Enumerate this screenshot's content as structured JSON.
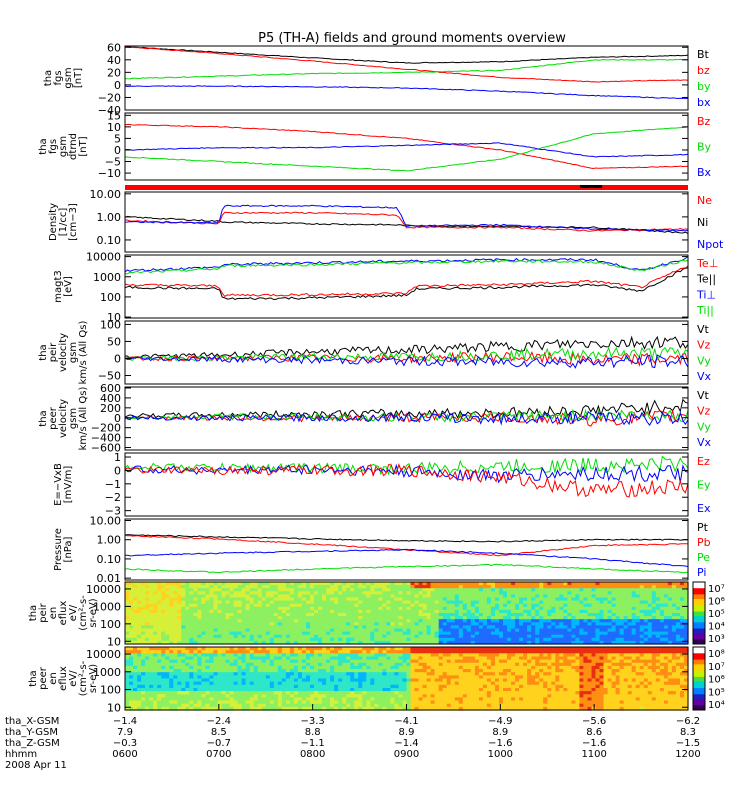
{
  "title": "P5 (TH-A) fields and ground moments overview",
  "colors": {
    "black": "#000000",
    "red": "#ff0000",
    "green": "#00dd00",
    "blue": "#0000ff",
    "flag": "#ff0000"
  },
  "chart_data": [
    {
      "id": "fgs-gsm",
      "type": "line",
      "ylabel": [
        "tha",
        "fgs",
        "gsm",
        "[nT]"
      ],
      "yticks": [
        "60",
        "40",
        "20",
        "0",
        "−20",
        "−40"
      ],
      "tick_values": [
        60,
        40,
        20,
        0,
        -20,
        -40
      ],
      "ylim": [
        -40,
        62
      ],
      "legend": [
        {
          "name": "Bt",
          "color": "black"
        },
        {
          "name": "bz",
          "color": "red"
        },
        {
          "name": "by",
          "color": "green"
        },
        {
          "name": "bx",
          "color": "blue"
        }
      ],
      "x": [
        0,
        1,
        2,
        3,
        4,
        5,
        6
      ],
      "series": [
        {
          "color": "black",
          "values": [
            61,
            52,
            43,
            35,
            37,
            44,
            47
          ]
        },
        {
          "color": "red",
          "values": [
            61,
            50,
            38,
            25,
            12,
            5,
            8
          ]
        },
        {
          "color": "green",
          "values": [
            10,
            14,
            18,
            20,
            23,
            40,
            40
          ]
        },
        {
          "color": "blue",
          "values": [
            -2,
            -2,
            -3,
            -5,
            -10,
            -17,
            -22
          ]
        }
      ]
    },
    {
      "id": "fgs-gsm-detrended",
      "type": "line",
      "ylabel": [
        "tha",
        "fgs",
        "gsm",
        "dtrnd",
        "[nT]"
      ],
      "yticks": [
        "15",
        "10",
        "5",
        "0",
        "−5",
        "−10"
      ],
      "tick_values": [
        15,
        10,
        5,
        0,
        -5,
        -10
      ],
      "ylim": [
        -13,
        16
      ],
      "legend": [
        {
          "name": "Bz",
          "color": "red"
        },
        {
          "name": "By",
          "color": "green"
        },
        {
          "name": "Bx",
          "color": "blue"
        }
      ],
      "x": [
        0,
        1,
        2,
        3,
        4,
        5,
        6
      ],
      "series": [
        {
          "color": "red",
          "values": [
            11,
            10,
            8,
            5,
            0,
            -8,
            -7
          ]
        },
        {
          "color": "green",
          "values": [
            -3,
            -5,
            -7,
            -9,
            -4,
            7,
            10
          ]
        },
        {
          "color": "blue",
          "values": [
            0,
            1,
            1,
            2,
            3,
            -3,
            -2
          ]
        }
      ]
    },
    {
      "id": "density",
      "type": "line",
      "log": true,
      "ylabel": [
        "Density",
        "[1/cc]",
        "[cm−3]"
      ],
      "yticks": [
        "10.00",
        "1.00",
        "0.10"
      ],
      "tick_values": [
        10,
        1,
        0.1
      ],
      "ylim": [
        0.03,
        12
      ],
      "legend": [
        {
          "name": "Ne",
          "color": "red"
        },
        {
          "name": "Ni",
          "color": "black"
        },
        {
          "name": "Npot",
          "color": "blue"
        }
      ],
      "x": [
        0,
        1,
        1.05,
        2,
        2.9,
        3,
        4,
        5,
        6
      ],
      "series": [
        {
          "color": "black",
          "values": [
            1.0,
            0.65,
            0.6,
            0.5,
            0.45,
            0.42,
            0.38,
            0.35,
            0.2
          ]
        },
        {
          "color": "red",
          "values": [
            0.7,
            0.5,
            1.5,
            1.5,
            1.2,
            0.35,
            0.35,
            0.25,
            0.3
          ]
        },
        {
          "color": "blue",
          "values": [
            0.6,
            0.55,
            3.0,
            3.0,
            2.5,
            0.4,
            0.45,
            0.3,
            0.25
          ]
        }
      ]
    },
    {
      "id": "temperature",
      "type": "line",
      "log": true,
      "ylabel": [
        "magt3",
        "[eV]"
      ],
      "yticks": [
        "10000",
        "1000",
        "100",
        "10"
      ],
      "tick_values": [
        10000,
        1000,
        100,
        10
      ],
      "ylim": [
        9,
        12000
      ],
      "legend": [
        {
          "name": "Te⊥",
          "color": "red"
        },
        {
          "name": "Te||",
          "color": "black"
        },
        {
          "name": "Ti⊥",
          "color": "blue"
        },
        {
          "name": "Ti||",
          "color": "green"
        }
      ],
      "x": [
        0,
        1,
        1.05,
        2,
        3,
        3.1,
        4,
        5,
        5.5,
        6
      ],
      "series": [
        {
          "color": "black",
          "values": [
            300,
            250,
            80,
            90,
            120,
            250,
            300,
            400,
            200,
            3000
          ]
        },
        {
          "color": "red",
          "values": [
            400,
            350,
            120,
            130,
            150,
            350,
            400,
            600,
            300,
            3500
          ]
        },
        {
          "color": "blue",
          "values": [
            2000,
            3000,
            4000,
            5000,
            6000,
            6000,
            7000,
            7000,
            2000,
            9000
          ]
        },
        {
          "color": "green",
          "values": [
            1500,
            2500,
            3500,
            4000,
            5000,
            5000,
            6000,
            5500,
            2000,
            7000
          ]
        }
      ]
    },
    {
      "id": "peir-velocity",
      "type": "line",
      "ylabel": [
        "tha",
        "peir",
        "velocity",
        "gsm",
        "km/s (All Qs)"
      ],
      "yticks": [
        "100",
        "50",
        "0",
        "−50"
      ],
      "tick_values": [
        100,
        50,
        0,
        -50
      ],
      "ylim": [
        -75,
        110
      ],
      "legend": [
        {
          "name": "Vt",
          "color": "black"
        },
        {
          "name": "Vz",
          "color": "red"
        },
        {
          "name": "Vy",
          "color": "green"
        },
        {
          "name": "Vx",
          "color": "blue"
        }
      ],
      "x": [
        0,
        1,
        2,
        3,
        4,
        5,
        6
      ],
      "series": [
        {
          "color": "black",
          "values": [
            5,
            10,
            20,
            25,
            35,
            45,
            50
          ]
        },
        {
          "color": "red",
          "values": [
            0,
            0,
            2,
            0,
            5,
            -5,
            0
          ]
        },
        {
          "color": "green",
          "values": [
            0,
            2,
            5,
            5,
            10,
            15,
            15
          ]
        },
        {
          "color": "blue",
          "values": [
            0,
            -2,
            -5,
            -8,
            -10,
            -10,
            -8
          ]
        }
      ]
    },
    {
      "id": "peer-velocity",
      "type": "line",
      "ylabel": [
        "tha",
        "peer",
        "velocity",
        "gsm",
        "km/s (All Qs)"
      ],
      "yticks": [
        "600",
        "400",
        "200",
        "0",
        "−200",
        "−400",
        "−600"
      ],
      "tick_values": [
        600,
        400,
        200,
        0,
        -200,
        -400,
        -600
      ],
      "ylim": [
        -650,
        620
      ],
      "legend": [
        {
          "name": "Vt",
          "color": "black"
        },
        {
          "name": "Vz",
          "color": "red"
        },
        {
          "name": "Vy",
          "color": "green"
        },
        {
          "name": "Vx",
          "color": "blue"
        }
      ],
      "x": [
        0,
        1,
        2,
        3,
        4,
        5,
        6
      ],
      "series": [
        {
          "color": "black",
          "values": [
            40,
            60,
            80,
            90,
            100,
            150,
            250
          ]
        },
        {
          "color": "red",
          "values": [
            0,
            0,
            -10,
            0,
            10,
            -50,
            50
          ]
        },
        {
          "color": "green",
          "values": [
            0,
            20,
            10,
            0,
            20,
            50,
            50
          ]
        },
        {
          "color": "blue",
          "values": [
            0,
            -10,
            0,
            10,
            -20,
            0,
            -30
          ]
        }
      ]
    },
    {
      "id": "e-field",
      "type": "line",
      "ylabel": [
        "E=−VxB",
        "[mV/m]"
      ],
      "yticks": [
        "1",
        "0",
        "−1",
        "−2",
        "−3"
      ],
      "tick_values": [
        1,
        0,
        -1,
        -2,
        -3
      ],
      "ylim": [
        -3.4,
        1.3
      ],
      "legend": [
        {
          "name": "Ez",
          "color": "red"
        },
        {
          "name": "Ey",
          "color": "green"
        },
        {
          "name": "Ex",
          "color": "blue"
        }
      ],
      "x": [
        0,
        1,
        2,
        3,
        4,
        5,
        6
      ],
      "series": [
        {
          "color": "green",
          "values": [
            0.3,
            0.2,
            0.2,
            0.1,
            0.3,
            0.4,
            0.5
          ]
        },
        {
          "color": "blue",
          "values": [
            0.1,
            0,
            0.1,
            -0.1,
            -0.4,
            -0.2,
            -0.3
          ]
        },
        {
          "color": "red",
          "values": [
            0,
            0,
            0,
            0,
            -0.5,
            -1.5,
            -1.2
          ]
        }
      ]
    },
    {
      "id": "pressure",
      "type": "line",
      "log": true,
      "ylabel": [
        "Pressure",
        "[nPa]"
      ],
      "yticks": [
        "10.00",
        "1.00",
        "0.10",
        "0.01"
      ],
      "tick_values": [
        10,
        1,
        0.1,
        0.01
      ],
      "ylim": [
        0.008,
        12
      ],
      "legend": [
        {
          "name": "Pt",
          "color": "black"
        },
        {
          "name": "Pb",
          "color": "red"
        },
        {
          "name": "Pe",
          "color": "green"
        },
        {
          "name": "Pi",
          "color": "blue"
        }
      ],
      "x": [
        0,
        1,
        2,
        3,
        4,
        5,
        6
      ],
      "series": [
        {
          "color": "black",
          "values": [
            1.8,
            1.4,
            1.1,
            0.9,
            0.8,
            1.0,
            1.0
          ]
        },
        {
          "color": "red",
          "values": [
            1.6,
            1.1,
            0.6,
            0.3,
            0.15,
            0.5,
            0.6
          ]
        },
        {
          "color": "blue",
          "values": [
            0.15,
            0.2,
            0.25,
            0.3,
            0.2,
            0.1,
            0.04
          ]
        },
        {
          "color": "green",
          "values": [
            0.03,
            0.02,
            0.03,
            0.04,
            0.05,
            0.03,
            0.02
          ]
        }
      ]
    },
    {
      "id": "peir-eflux",
      "type": "heatmap",
      "log": true,
      "ylabel": [
        "tha",
        "peir",
        "en",
        "eflux",
        "eV/",
        "(cm²-s-",
        "sr-eV)"
      ],
      "yticks": [
        "10000",
        "1000",
        "100",
        "10"
      ],
      "tick_values": [
        10000,
        1000,
        100,
        10
      ],
      "ylim": [
        7,
        25000
      ],
      "colorbar_ticks": [
        "10⁷",
        "10⁶",
        "10⁵",
        "10⁴",
        "10³"
      ]
    },
    {
      "id": "peer-eflux",
      "type": "heatmap",
      "log": true,
      "ylabel": [
        "tha",
        "peer",
        "en",
        "eflux",
        "eV/",
        "(cm²-s-",
        "sr-eV)"
      ],
      "yticks": [
        "10000",
        "1000",
        "100",
        "10"
      ],
      "tick_values": [
        10000,
        1000,
        100,
        10
      ],
      "ylim": [
        7,
        25000
      ],
      "colorbar_ticks": [
        "10⁸",
        "10⁷",
        "10⁶",
        "10⁵",
        "10⁴"
      ]
    }
  ],
  "x_axis": {
    "rows": [
      {
        "label": "tha_X-GSM",
        "values": [
          "−1.4",
          "−2.4",
          "−3.3",
          "−4.1",
          "−4.9",
          "−5.6",
          "−6.2"
        ]
      },
      {
        "label": "tha_Y-GSM",
        "values": [
          "7.9",
          "8.5",
          "8.8",
          "8.9",
          "8.9",
          "8.6",
          "8.3"
        ]
      },
      {
        "label": "tha_Z-GSM",
        "values": [
          "−0.3",
          "−0.7",
          "−1.1",
          "−1.4",
          "−1.6",
          "−1.6",
          "−1.5"
        ]
      },
      {
        "label": "hhmm",
        "values": [
          "0600",
          "0700",
          "0800",
          "0900",
          "1000",
          "1100",
          "1200"
        ]
      }
    ],
    "date": "2008 Apr 11"
  }
}
